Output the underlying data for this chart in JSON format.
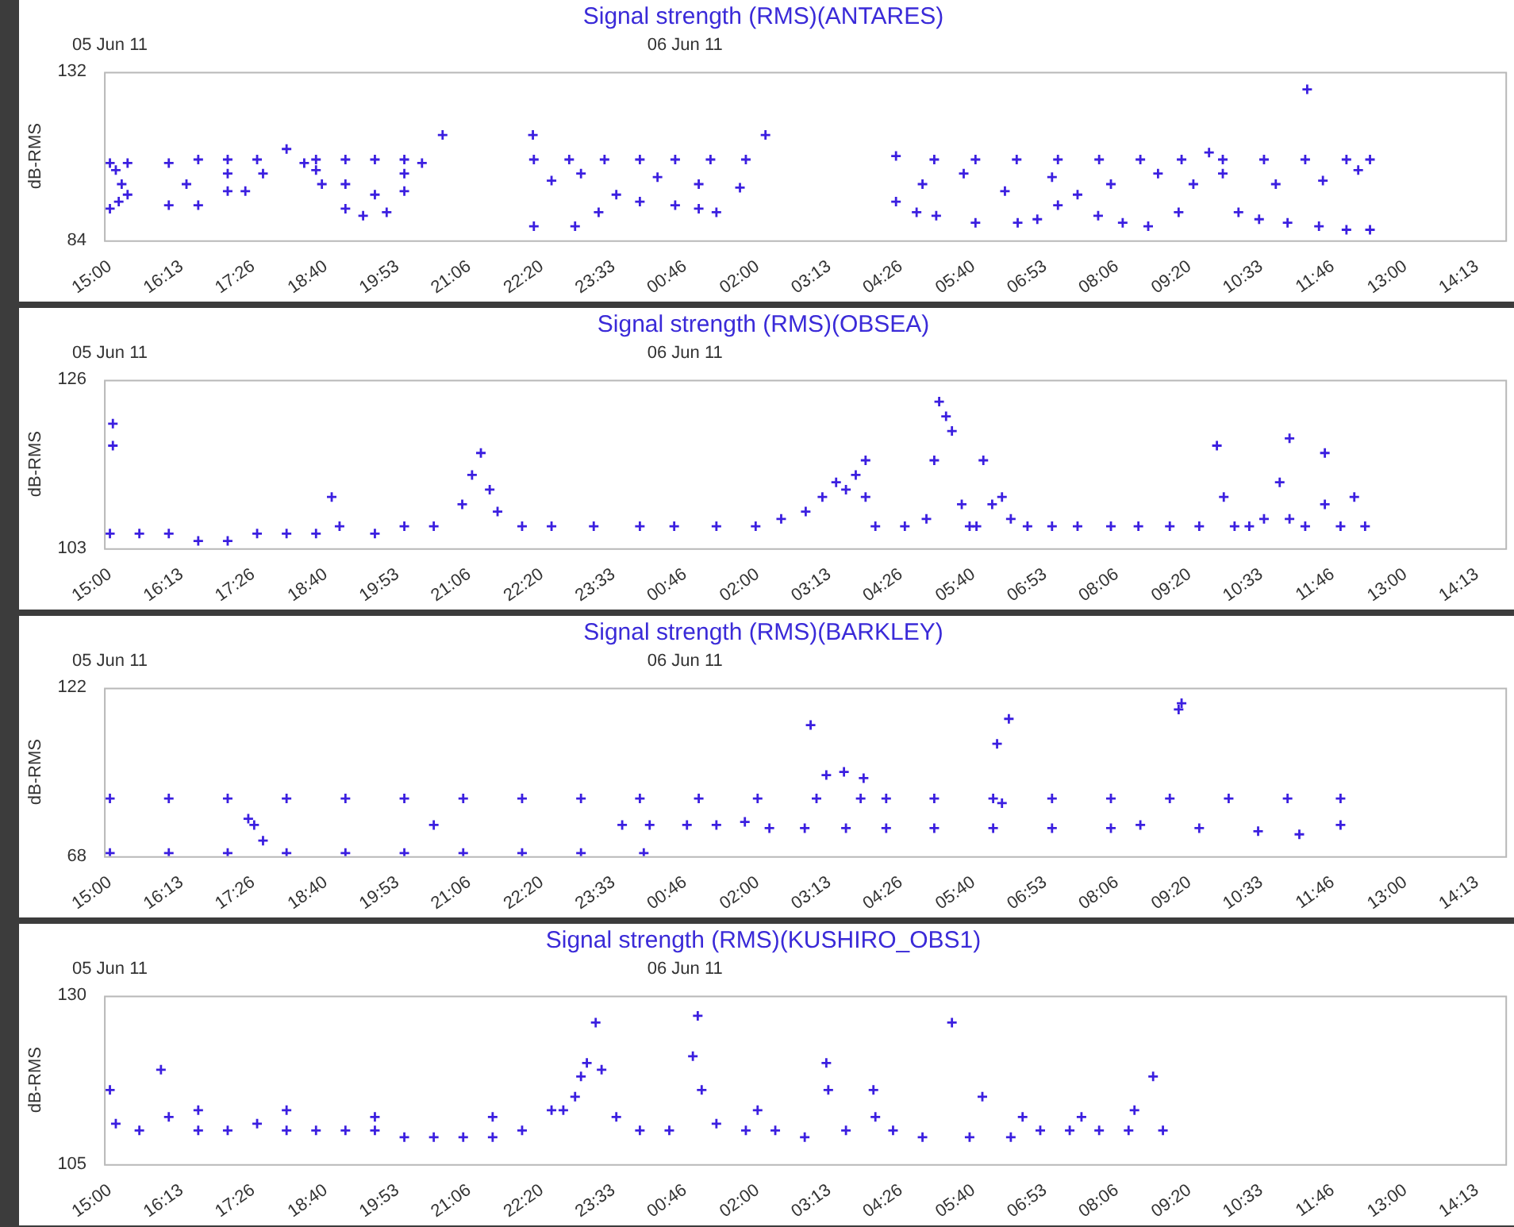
{
  "chart_data": [
    {
      "type": "scatter",
      "title": "Signal strength (RMS)(ANTARES)",
      "ylabel": "dB-RMS",
      "color": "#3b1fe0",
      "marker": "cross",
      "x": [
        "--06-05T15:00",
        "--06-05T15:06",
        "--06-05T15:12",
        "--06-05T15:18",
        "--06-05T15:00",
        "--06-05T15:09",
        "--06-05T15:18",
        "--06-05T16:00",
        "--06-05T16:30",
        "--06-05T17:00",
        "--06-05T17:30",
        "--06-05T18:30",
        "--06-05T19:00",
        "--06-05T19:30",
        "--06-05T20:00",
        "--06-05T16:00",
        "--06-05T16:30",
        "--06-05T17:00",
        "--06-05T17:18",
        "--06-05T17:36",
        "--06-05T18:00",
        "--06-05T18:18",
        "--06-05T18:36",
        "--06-05T19:00",
        "--06-05T19:18",
        "--06-05T19:42",
        "--06-05T20:00",
        "--06-05T20:18",
        "--06-05T20:39",
        "--06-05T17:00",
        "--06-05T18:30",
        "--06-05T19:00",
        "--06-05T19:30",
        "--06-05T20:00",
        "--06-05T16:18",
        "--06-05T22:11",
        "--06-05T22:12",
        "--06-05T22:48",
        "--06-05T23:24",
        "--06-06T00:00",
        "--06-06T00:36",
        "--06-06T01:12",
        "--06-06T01:48",
        "--06-05T22:12",
        "--06-05T22:54",
        "--06-05T23:18",
        "--06-05T23:36",
        "--06-06T00:00",
        "--06-06T00:36",
        "--06-06T01:00",
        "--06-06T01:18",
        "--06-06T01:42",
        "--06-06T02:08",
        "--06-05T22:30",
        "--06-05T23:00",
        "--06-06T00:18",
        "--06-06T01:00",
        "--06-06T04:21",
        "--06-06T05:00",
        "--06-06T05:42",
        "--06-06T06:24",
        "--06-06T07:06",
        "--06-06T07:48",
        "--06-06T08:30",
        "--06-06T09:12",
        "--06-06T09:54",
        "--06-06T10:36",
        "--06-06T11:18",
        "--06-06T12:00",
        "--06-06T12:24",
        "--06-06T04:21",
        "--06-06T04:42",
        "--06-06T05:02",
        "--06-06T05:42",
        "--06-06T06:25",
        "--06-06T06:45",
        "--06-06T07:06",
        "--06-06T07:26",
        "--06-06T07:47",
        "--06-06T08:12",
        "--06-06T08:38",
        "--06-06T09:09",
        "--06-06T09:24",
        "--06-06T09:40",
        "--06-06T09:54",
        "--06-06T10:10",
        "--06-06T10:31",
        "--06-06T11:00",
        "--06-06T11:32",
        "--06-06T12:00",
        "--06-06T12:24",
        "--06-06T04:48",
        "--06-06T05:30",
        "--06-06T06:12",
        "--06-06T07:00",
        "--06-06T08:00",
        "--06-06T08:48",
        "--06-06T10:48",
        "--06-06T11:36",
        "--06-06T12:12",
        "--06-06T11:20"
      ],
      "values": [
        106,
        104,
        100,
        106,
        93,
        95,
        97,
        106,
        107,
        107,
        107,
        107,
        107,
        107,
        107,
        94,
        94,
        98,
        98,
        103,
        110,
        106,
        100,
        93,
        91,
        92,
        98,
        106,
        114,
        103,
        104,
        100,
        97,
        103,
        100,
        114,
        107,
        107,
        107,
        107,
        107,
        107,
        107,
        88,
        88,
        92,
        97,
        95,
        94,
        93,
        92,
        99,
        114,
        101,
        103,
        102,
        100,
        108,
        107,
        107,
        107,
        107,
        107,
        107,
        107,
        107,
        107,
        107,
        107,
        107,
        95,
        92,
        91,
        89,
        89,
        90,
        94,
        97,
        91,
        89,
        88,
        92,
        100,
        109,
        103,
        92,
        90,
        89,
        88,
        87,
        87,
        100,
        103,
        98,
        102,
        100,
        103,
        100,
        101,
        104,
        127
      ],
      "xlim": [
        "--06-05T14:54",
        "--06-06T14:42"
      ],
      "xticks": [
        {
          "value": "--06-05T15:00",
          "label": "15:00"
        },
        {
          "value": "--06-05T16:13",
          "label": "16:13"
        },
        {
          "value": "--06-05T17:26",
          "label": "17:26"
        },
        {
          "value": "--06-05T18:40",
          "label": "18:40"
        },
        {
          "value": "--06-05T19:53",
          "label": "19:53"
        },
        {
          "value": "--06-05T21:06",
          "label": "21:06"
        },
        {
          "value": "--06-05T22:20",
          "label": "22:20"
        },
        {
          "value": "--06-05T23:33",
          "label": "23:33"
        },
        {
          "value": "--06-06T00:46",
          "label": "00:46"
        },
        {
          "value": "--06-06T02:00",
          "label": "02:00"
        },
        {
          "value": "--06-06T03:13",
          "label": "03:13"
        },
        {
          "value": "--06-06T04:26",
          "label": "04:26"
        },
        {
          "value": "--06-06T05:40",
          "label": "05:40"
        },
        {
          "value": "--06-06T06:53",
          "label": "06:53"
        },
        {
          "value": "--06-06T08:06",
          "label": "08:06"
        },
        {
          "value": "--06-06T09:20",
          "label": "09:20"
        },
        {
          "value": "--06-06T10:33",
          "label": "10:33"
        },
        {
          "value": "--06-06T11:46",
          "label": "11:46"
        },
        {
          "value": "--06-06T13:00",
          "label": "13:00"
        },
        {
          "value": "--06-06T14:13",
          "label": "14:13"
        }
      ],
      "x2lim": [
        "--06-05T14:54",
        "--06-06T14:42"
      ],
      "x2ticks": [
        {
          "value": "--06-05T15:00",
          "label": "05 Jun 11"
        },
        {
          "value": "--06-06T00:46",
          "label": "06 Jun 11"
        }
      ],
      "ylim": [
        84,
        132
      ],
      "yticks": [
        84,
        132
      ]
    },
    {
      "type": "scatter",
      "title": "Signal strength (RMS)(OBSEA)",
      "ylabel": "dB-RMS",
      "color": "#3b1fe0",
      "marker": "cross",
      "x": [
        "--06-05T15:00",
        "--06-05T15:03",
        "--06-05T15:03",
        "--06-05T15:30",
        "--06-05T16:00",
        "--06-05T16:30",
        "--06-05T17:00",
        "--06-05T17:30",
        "--06-05T18:00",
        "--06-05T18:30",
        "--06-05T18:46",
        "--06-05T18:54",
        "--06-05T19:30",
        "--06-05T20:00",
        "--06-05T20:30",
        "--06-05T20:59",
        "--06-05T21:09",
        "--06-05T21:18",
        "--06-05T21:27",
        "--06-05T21:35",
        "--06-05T22:00",
        "--06-05T22:30",
        "--06-05T23:13",
        "--06-06T00:00",
        "--06-06T00:35",
        "--06-06T01:18",
        "--06-06T01:58",
        "--06-06T02:24",
        "--06-06T02:49",
        "--06-06T03:06",
        "--06-06T03:20",
        "--06-06T03:30",
        "--06-06T03:40",
        "--06-06T03:50",
        "--06-06T03:50",
        "--06-06T04:00",
        "--06-06T04:30",
        "--06-06T04:52",
        "--06-06T05:00",
        "--06-06T05:05",
        "--06-06T05:12",
        "--06-06T05:18",
        "--06-06T05:28",
        "--06-06T05:36",
        "--06-06T05:43",
        "--06-06T05:50",
        "--06-06T05:59",
        "--06-06T06:09",
        "--06-06T06:18",
        "--06-06T06:35",
        "--06-06T07:00",
        "--06-06T07:26",
        "--06-06T08:00",
        "--06-06T08:28",
        "--06-06T09:00",
        "--06-06T09:30",
        "--06-06T09:48",
        "--06-06T09:55",
        "--06-06T10:06",
        "--06-06T10:21",
        "--06-06T10:36",
        "--06-06T10:52",
        "--06-06T11:02",
        "--06-06T11:02",
        "--06-06T11:18",
        "--06-06T11:38",
        "--06-06T11:38",
        "--06-06T11:54",
        "--06-06T12:08",
        "--06-06T12:19"
      ],
      "values": [
        105,
        120,
        117,
        105,
        105,
        104,
        104,
        105,
        105,
        105,
        110,
        106,
        105,
        106,
        106,
        109,
        113,
        116,
        111,
        108,
        106,
        106,
        106,
        106,
        106,
        106,
        106,
        107,
        108,
        110,
        112,
        111,
        113,
        115,
        110,
        106,
        106,
        107,
        115,
        123,
        121,
        119,
        109,
        106,
        106,
        115,
        109,
        110,
        107,
        106,
        106,
        106,
        106,
        106,
        106,
        106,
        117,
        110,
        106,
        106,
        107,
        112,
        118,
        107,
        106,
        116,
        109,
        106,
        110,
        106
      ],
      "xlim": [
        "--06-05T14:54",
        "--06-06T14:42"
      ],
      "xticks": [
        {
          "value": "--06-05T15:00",
          "label": "15:00"
        },
        {
          "value": "--06-05T16:13",
          "label": "16:13"
        },
        {
          "value": "--06-05T17:26",
          "label": "17:26"
        },
        {
          "value": "--06-05T18:40",
          "label": "18:40"
        },
        {
          "value": "--06-05T19:53",
          "label": "19:53"
        },
        {
          "value": "--06-05T21:06",
          "label": "21:06"
        },
        {
          "value": "--06-05T22:20",
          "label": "22:20"
        },
        {
          "value": "--06-05T23:33",
          "label": "23:33"
        },
        {
          "value": "--06-06T00:46",
          "label": "00:46"
        },
        {
          "value": "--06-06T02:00",
          "label": "02:00"
        },
        {
          "value": "--06-06T03:13",
          "label": "03:13"
        },
        {
          "value": "--06-06T04:26",
          "label": "04:26"
        },
        {
          "value": "--06-06T05:40",
          "label": "05:40"
        },
        {
          "value": "--06-06T06:53",
          "label": "06:53"
        },
        {
          "value": "--06-06T08:06",
          "label": "08:06"
        },
        {
          "value": "--06-06T09:20",
          "label": "09:20"
        },
        {
          "value": "--06-06T10:33",
          "label": "10:33"
        },
        {
          "value": "--06-06T11:46",
          "label": "11:46"
        },
        {
          "value": "--06-06T13:00",
          "label": "13:00"
        },
        {
          "value": "--06-06T14:13",
          "label": "14:13"
        }
      ],
      "x2lim": [
        "--06-05T14:54",
        "--06-06T14:42"
      ],
      "x2ticks": [
        {
          "value": "--06-05T15:00",
          "label": "05 Jun 11"
        },
        {
          "value": "--06-06T00:46",
          "label": "06 Jun 11"
        }
      ],
      "ylim": [
        103,
        126
      ],
      "yticks": [
        103,
        126
      ]
    },
    {
      "type": "scatter",
      "title": "Signal strength (RMS)(BARKLEY)",
      "ylabel": "dB-RMS",
      "color": "#3b1fe0",
      "marker": "cross",
      "x": [
        "--06-05T15:00",
        "--06-05T16:00",
        "--06-05T17:00",
        "--06-05T18:00",
        "--06-05T19:00",
        "--06-05T20:00",
        "--06-05T21:00",
        "--06-05T22:00",
        "--06-05T23:00",
        "--06-06T00:04",
        "--06-05T15:00",
        "--06-05T16:00",
        "--06-05T17:00",
        "--06-05T18:00",
        "--06-05T19:00",
        "--06-05T20:00",
        "--06-05T21:00",
        "--06-05T22:00",
        "--06-05T23:00",
        "--06-06T00:00",
        "--06-06T01:00",
        "--06-06T02:00",
        "--06-06T03:00",
        "--06-06T03:45",
        "--06-06T04:11",
        "--06-06T05:00",
        "--06-06T06:00",
        "--06-06T07:00",
        "--06-06T08:00",
        "--06-06T09:00",
        "--06-06T10:00",
        "--06-06T11:00",
        "--06-06T11:54",
        "--06-06T00:10",
        "--06-06T00:48",
        "--06-06T01:18",
        "--06-06T01:47",
        "--06-06T02:12",
        "--06-06T02:48",
        "--06-06T03:30",
        "--06-06T04:11",
        "--06-06T05:00",
        "--06-06T06:00",
        "--06-06T07:00",
        "--06-06T08:00",
        "--06-06T08:30",
        "--06-06T09:30",
        "--06-06T10:30",
        "--06-06T11:12",
        "--06-06T11:54",
        "--06-05T17:21",
        "--06-05T17:27",
        "--06-05T17:36",
        "--06-05T20:30",
        "--06-05T23:42",
        "--06-06T02:54",
        "--06-06T03:10",
        "--06-06T03:28",
        "--06-06T03:48",
        "--06-06T06:04",
        "--06-06T06:16",
        "--06-06T06:09",
        "--06-06T09:09",
        "--06-06T09:12"
      ],
      "values": [
        69,
        69,
        69,
        69,
        69,
        69,
        69,
        69,
        69,
        69,
        86.5,
        86.5,
        86.5,
        86.5,
        86.5,
        86.5,
        86.5,
        86.5,
        86.5,
        86.5,
        86.5,
        86.5,
        86.5,
        86.5,
        86.5,
        86.5,
        86.5,
        86.5,
        86.5,
        86.5,
        86.5,
        86.5,
        86.5,
        78,
        78,
        78,
        79,
        77,
        77,
        77,
        77,
        77,
        77,
        77,
        77,
        78,
        77,
        76,
        75,
        78,
        80,
        78,
        73,
        78,
        78,
        110,
        94,
        95,
        93,
        104,
        112,
        85,
        115,
        117
      ],
      "xlim": [
        "--06-05T14:54",
        "--06-06T14:42"
      ],
      "xticks": [
        {
          "value": "--06-05T15:00",
          "label": "15:00"
        },
        {
          "value": "--06-05T16:13",
          "label": "16:13"
        },
        {
          "value": "--06-05T17:26",
          "label": "17:26"
        },
        {
          "value": "--06-05T18:40",
          "label": "18:40"
        },
        {
          "value": "--06-05T19:53",
          "label": "19:53"
        },
        {
          "value": "--06-05T21:06",
          "label": "21:06"
        },
        {
          "value": "--06-05T22:20",
          "label": "22:20"
        },
        {
          "value": "--06-05T23:33",
          "label": "23:33"
        },
        {
          "value": "--06-06T00:46",
          "label": "00:46"
        },
        {
          "value": "--06-06T02:00",
          "label": "02:00"
        },
        {
          "value": "--06-06T03:13",
          "label": "03:13"
        },
        {
          "value": "--06-06T04:26",
          "label": "04:26"
        },
        {
          "value": "--06-06T05:40",
          "label": "05:40"
        },
        {
          "value": "--06-06T06:53",
          "label": "06:53"
        },
        {
          "value": "--06-06T08:06",
          "label": "08:06"
        },
        {
          "value": "--06-06T09:20",
          "label": "09:20"
        },
        {
          "value": "--06-06T10:33",
          "label": "10:33"
        },
        {
          "value": "--06-06T11:46",
          "label": "11:46"
        },
        {
          "value": "--06-06T13:00",
          "label": "13:00"
        },
        {
          "value": "--06-06T14:13",
          "label": "14:13"
        }
      ],
      "x2lim": [
        "--06-05T14:54",
        "--06-06T14:42"
      ],
      "x2ticks": [
        {
          "value": "--06-05T15:00",
          "label": "05 Jun 11"
        },
        {
          "value": "--06-06T00:46",
          "label": "06 Jun 11"
        }
      ],
      "ylim": [
        68,
        122
      ],
      "yticks": [
        68,
        122
      ]
    },
    {
      "type": "scatter",
      "title": "Signal strength (RMS)(KUSHIRO_OBS1)",
      "ylabel": "dB-RMS",
      "color": "#3b1fe0",
      "marker": "cross",
      "x": [
        "--06-05T15:00",
        "--06-05T15:06",
        "--06-05T15:30",
        "--06-05T15:52",
        "--06-05T16:00",
        "--06-05T16:30",
        "--06-05T17:00",
        "--06-05T17:30",
        "--06-05T18:00",
        "--06-05T18:30",
        "--06-05T19:00",
        "--06-05T19:30",
        "--06-05T20:00",
        "--06-05T20:30",
        "--06-05T21:00",
        "--06-05T21:30",
        "--06-05T22:00",
        "--06-05T22:30",
        "--06-05T22:42",
        "--06-05T22:54",
        "--06-05T23:00",
        "--06-05T23:06",
        "--06-05T23:15",
        "--06-05T23:21",
        "--06-05T23:36",
        "--06-06T00:00",
        "--06-06T00:30",
        "--06-06T00:54",
        "--06-06T00:59",
        "--06-06T01:03",
        "--06-06T01:18",
        "--06-06T01:48",
        "--06-06T02:18",
        "--06-06T02:48",
        "--06-06T03:10",
        "--06-06T03:12",
        "--06-06T03:30",
        "--06-06T03:58",
        "--06-06T04:18",
        "--06-06T04:48",
        "--06-06T05:18",
        "--06-06T05:36",
        "--06-06T05:49",
        "--06-06T06:18",
        "--06-06T06:48",
        "--06-06T07:18",
        "--06-06T07:48",
        "--06-06T08:18",
        "--06-06T08:43",
        "--06-06T08:53",
        "--06-05T16:30",
        "--06-05T18:00",
        "--06-05T19:30",
        "--06-05T21:30",
        "--06-06T02:00",
        "--06-06T04:00",
        "--06-06T06:30",
        "--06-06T07:30",
        "--06-06T08:24"
      ],
      "values": [
        116,
        111,
        110,
        119,
        112,
        110,
        110,
        111,
        110,
        110,
        110,
        110,
        109,
        109,
        109,
        109,
        110,
        113,
        113,
        115,
        118,
        120,
        126,
        119,
        112,
        110,
        110,
        121,
        127,
        116,
        111,
        110,
        110,
        109,
        120,
        116,
        110,
        116,
        110,
        109,
        126,
        109,
        115,
        109,
        110,
        110,
        110,
        110,
        118,
        110,
        113,
        113,
        112,
        112,
        113,
        112,
        112,
        112,
        113
      ],
      "xlim": [
        "--06-05T14:54",
        "--06-06T14:42"
      ],
      "xticks": [
        {
          "value": "--06-05T15:00",
          "label": "15:00"
        },
        {
          "value": "--06-05T16:13",
          "label": "16:13"
        },
        {
          "value": "--06-05T17:26",
          "label": "17:26"
        },
        {
          "value": "--06-05T18:40",
          "label": "18:40"
        },
        {
          "value": "--06-05T19:53",
          "label": "19:53"
        },
        {
          "value": "--06-05T21:06",
          "label": "21:06"
        },
        {
          "value": "--06-05T22:20",
          "label": "22:20"
        },
        {
          "value": "--06-05T23:33",
          "label": "23:33"
        },
        {
          "value": "--06-06T00:46",
          "label": "00:46"
        },
        {
          "value": "--06-06T02:00",
          "label": "02:00"
        },
        {
          "value": "--06-06T03:13",
          "label": "03:13"
        },
        {
          "value": "--06-06T04:26",
          "label": "04:26"
        },
        {
          "value": "--06-06T05:40",
          "label": "05:40"
        },
        {
          "value": "--06-06T06:53",
          "label": "06:53"
        },
        {
          "value": "--06-06T08:06",
          "label": "08:06"
        },
        {
          "value": "--06-06T09:20",
          "label": "09:20"
        },
        {
          "value": "--06-06T10:33",
          "label": "10:33"
        },
        {
          "value": "--06-06T11:46",
          "label": "11:46"
        },
        {
          "value": "--06-06T13:00",
          "label": "13:00"
        },
        {
          "value": "--06-06T14:13",
          "label": "14:13"
        }
      ],
      "x2lim": [
        "--06-05T14:54",
        "--06-06T14:42"
      ],
      "x2ticks": [
        {
          "value": "--06-05T15:00",
          "label": "05 Jun 11"
        },
        {
          "value": "--06-06T00:46",
          "label": "06 Jun 11"
        }
      ],
      "ylim": [
        105,
        130
      ],
      "yticks": [
        105,
        130
      ]
    }
  ]
}
